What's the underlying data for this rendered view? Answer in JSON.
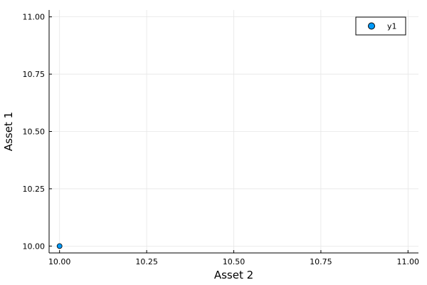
{
  "chart_data": {
    "type": "scatter",
    "xlabel": "Asset 2",
    "ylabel": "Asset 1",
    "xlim": [
      9.97,
      11.03
    ],
    "ylim": [
      9.97,
      11.03
    ],
    "xticks": [
      10.0,
      10.25,
      10.5,
      10.75,
      11.0
    ],
    "xtick_labels": [
      "10.00",
      "10.25",
      "10.50",
      "10.75",
      "11.00"
    ],
    "yticks": [
      10.0,
      10.25,
      10.5,
      10.75,
      11.0
    ],
    "ytick_labels": [
      "10.00",
      "10.25",
      "10.50",
      "10.75",
      "11.00"
    ],
    "grid": true,
    "legend_position": "top-right",
    "series": [
      {
        "name": "y1",
        "color": "#009AFA",
        "points": [
          {
            "x": 10.0,
            "y": 10.0
          }
        ]
      }
    ]
  }
}
